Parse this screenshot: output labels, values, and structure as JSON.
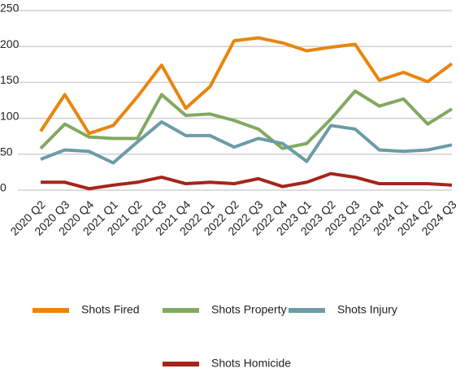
{
  "chart_data": {
    "type": "line",
    "categories": [
      "2020 Q2",
      "2020 Q3",
      "2020 Q4",
      "2021 Q1",
      "2021 Q2",
      "2021 Q3",
      "2021 Q4",
      "2022 Q1",
      "2022 Q2",
      "2022 Q3",
      "2022 Q4",
      "2023 Q1",
      "2023 Q2",
      "2023 Q3",
      "2023 Q4",
      "2024 Q1",
      "2024 Q2",
      "2024 Q3"
    ],
    "series": [
      {
        "name": "Shots Fired",
        "color": "#e8850c",
        "values": [
          82,
          133,
          79,
          90,
          130,
          174,
          114,
          144,
          208,
          212,
          205,
          194,
          199,
          203,
          153,
          164,
          151,
          176
        ]
      },
      {
        "name": "Shots Property",
        "color": "#82a960",
        "values": [
          58,
          92,
          74,
          72,
          72,
          133,
          104,
          106,
          97,
          85,
          58,
          65,
          99,
          138,
          117,
          127,
          92,
          113
        ]
      },
      {
        "name": "Shots Injury",
        "color": "#6b9ca6",
        "values": [
          43,
          56,
          54,
          38,
          67,
          95,
          76,
          76,
          60,
          72,
          65,
          40,
          90,
          85,
          56,
          54,
          56,
          63
        ]
      },
      {
        "name": "Shots Homicide",
        "color": "#a5251a",
        "values": [
          11,
          11,
          2,
          7,
          11,
          18,
          9,
          11,
          9,
          16,
          5,
          11,
          23,
          18,
          9,
          9,
          9,
          7
        ]
      }
    ],
    "ylim": [
      0,
      250
    ],
    "yticks": [
      0,
      50,
      100,
      150,
      200,
      250
    ],
    "grid": true
  }
}
